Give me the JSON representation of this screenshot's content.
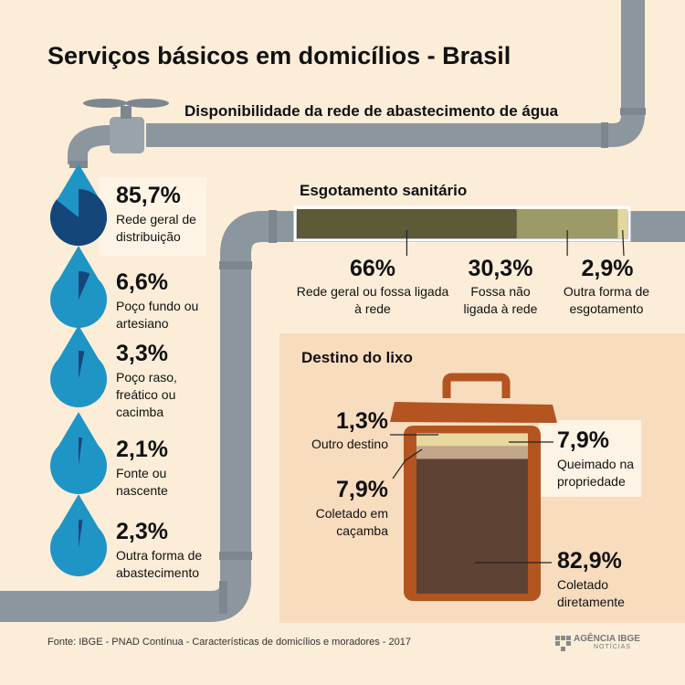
{
  "title": "Serviços básicos em domicílios - Brasil",
  "source": "Fonte: IBGE - PNAD Contínua - Características de domicílios e moradores - 2017",
  "logo": {
    "name": "AGÊNCIA IBGE",
    "sub": "NOTÍCIAS",
    "icon": "ibge-logo-icon"
  },
  "colors": {
    "background": "#fbedd8",
    "pipe": "#8c969e",
    "drop": "#1f95c6",
    "drop_share": "#14467a",
    "sewage": [
      "#5c5a37",
      "#9c9b67",
      "#e3d6a0"
    ],
    "bin": "#b45420",
    "trash": [
      "#e9d7a0",
      "#c2a78a",
      "#5e4335"
    ],
    "label_box": "#fdf4e6",
    "panel": "#f8dcbe"
  },
  "chart_data": [
    {
      "type": "pie",
      "title": "Disponibilidade da rede de abastecimento de água",
      "items": [
        {
          "value": 85.7,
          "value_label": "85,7%",
          "label": "Rede geral de distribuição"
        },
        {
          "value": 6.6,
          "value_label": "6,6%",
          "label": "Poço fundo ou artesiano"
        },
        {
          "value": 3.3,
          "value_label": "3,3%",
          "label": "Poço raso, freático ou cacimba"
        },
        {
          "value": 2.1,
          "value_label": "2,1%",
          "label": "Fonte ou nascente"
        },
        {
          "value": 2.3,
          "value_label": "2,3%",
          "label": "Outra forma de abastecimento"
        }
      ]
    },
    {
      "type": "bar",
      "title": "Esgotamento sanitário",
      "items": [
        {
          "value": 66,
          "value_label": "66%",
          "label": "Rede geral ou fossa ligada à rede"
        },
        {
          "value": 30.3,
          "value_label": "30,3%",
          "label": "Fossa não ligada à rede"
        },
        {
          "value": 2.9,
          "value_label": "2,9%",
          "label": "Outra forma de esgotamento"
        }
      ]
    },
    {
      "type": "bar",
      "title": "Destino do lixo",
      "items": [
        {
          "value": 1.3,
          "value_label": "1,3%",
          "label": "Outro destino"
        },
        {
          "value": 7.9,
          "value_label": "7,9%",
          "label": "Queimado na propriedade"
        },
        {
          "value": 7.9,
          "value_label": "7,9%",
          "label": "Coletado em caçamba"
        },
        {
          "value": 82.9,
          "value_label": "82,9%",
          "label": "Coletado diretamente"
        }
      ]
    }
  ]
}
